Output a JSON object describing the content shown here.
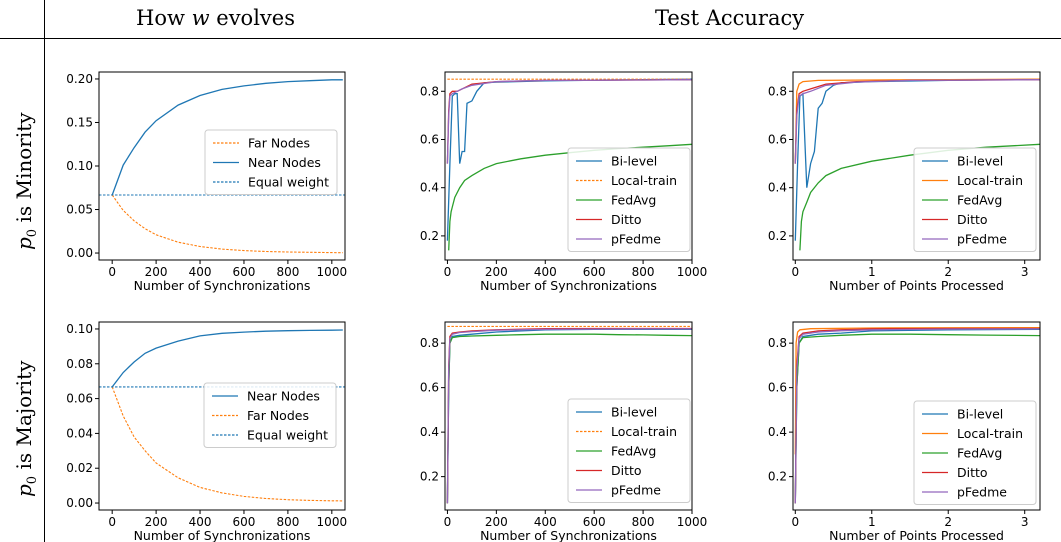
{
  "header": {
    "left_prefix": "How ",
    "left_var": "w",
    "left_suffix": " evolves",
    "right": "Test Accuracy"
  },
  "rows": [
    {
      "var": "p",
      "sub": "0",
      "text": " is Minority"
    },
    {
      "var": "p",
      "sub": "0",
      "text": " is Majority"
    }
  ],
  "colors": {
    "blue": "#1f77b4",
    "orange": "#ff7f0e",
    "green": "#2ca02c",
    "red": "#d62728",
    "purple": "#9467bd"
  },
  "chart_data": [
    {
      "type": "line",
      "panel": "minority-weights",
      "xlabel": "Number of Synchronizations",
      "xlim": [
        -60,
        1060
      ],
      "ylim": [
        -0.008,
        0.208
      ],
      "xticks": [
        0,
        200,
        400,
        600,
        800,
        1000
      ],
      "xtick_labels": [
        "0",
        "200",
        "400",
        "600",
        "800",
        "1000"
      ],
      "yticks": [
        0.0,
        0.05,
        0.1,
        0.15,
        0.2
      ],
      "ytick_labels": [
        "0.00",
        "0.05",
        "0.10",
        "0.15",
        "0.20"
      ],
      "legend_pos": "center-right",
      "legend": [
        "Far Nodes",
        "Near Nodes",
        "Equal weight"
      ],
      "series": [
        {
          "name": "Far Nodes",
          "color": "orange",
          "dash": true,
          "x": [
            0,
            50,
            100,
            150,
            200,
            300,
            400,
            500,
            600,
            700,
            800,
            900,
            1000,
            1050
          ],
          "y": [
            0.0667,
            0.049,
            0.037,
            0.028,
            0.021,
            0.0125,
            0.0075,
            0.0045,
            0.0028,
            0.0018,
            0.0012,
            0.0008,
            0.0005,
            0.0004
          ]
        },
        {
          "name": "Near Nodes",
          "color": "blue",
          "dash": false,
          "x": [
            0,
            50,
            100,
            150,
            200,
            300,
            400,
            500,
            600,
            700,
            800,
            900,
            1000,
            1050
          ],
          "y": [
            0.0667,
            0.101,
            0.121,
            0.139,
            0.152,
            0.17,
            0.181,
            0.188,
            0.192,
            0.195,
            0.197,
            0.198,
            0.199,
            0.199
          ]
        },
        {
          "name": "Equal weight",
          "color": "blue",
          "dash": true,
          "x": [
            -60,
            1060
          ],
          "y": [
            0.0667,
            0.0667
          ]
        }
      ]
    },
    {
      "type": "line",
      "panel": "minority-accuracy-sync",
      "xlabel": "Number of Synchronizations",
      "xlim": [
        -10,
        1000
      ],
      "ylim": [
        0.1,
        0.88
      ],
      "xticks": [
        0,
        200,
        400,
        600,
        800,
        1000
      ],
      "xtick_labels": [
        "0",
        "200",
        "400",
        "600",
        "800",
        "1000"
      ],
      "yticks": [
        0.2,
        0.4,
        0.6,
        0.8
      ],
      "ytick_labels": [
        "0.2",
        "0.4",
        "0.6",
        "0.8"
      ],
      "legend_pos": "lower-right",
      "legend": [
        "Bi-level",
        "Local-train",
        "FedAvg",
        "Ditto",
        "pFedme"
      ],
      "series": [
        {
          "name": "Bi-level",
          "color": "blue",
          "dash": false,
          "x": [
            0,
            10,
            20,
            30,
            40,
            50,
            60,
            70,
            80,
            100,
            120,
            150,
            200,
            400,
            600,
            800,
            1000
          ],
          "y": [
            0.18,
            0.5,
            0.78,
            0.79,
            0.79,
            0.5,
            0.55,
            0.55,
            0.75,
            0.76,
            0.8,
            0.835,
            0.838,
            0.843,
            0.846,
            0.848,
            0.85
          ]
        },
        {
          "name": "Local-train",
          "color": "orange",
          "dash": true,
          "x": [
            0,
            1000
          ],
          "y": [
            0.85,
            0.85
          ]
        },
        {
          "name": "FedAvg",
          "color": "green",
          "dash": false,
          "x": [
            5,
            10,
            15,
            20,
            30,
            50,
            70,
            100,
            150,
            200,
            300,
            400,
            500,
            600,
            700,
            800,
            900,
            1000
          ],
          "y": [
            0.14,
            0.26,
            0.3,
            0.32,
            0.36,
            0.4,
            0.43,
            0.45,
            0.48,
            0.5,
            0.52,
            0.535,
            0.545,
            0.555,
            0.562,
            0.568,
            0.574,
            0.58
          ]
        },
        {
          "name": "Ditto",
          "color": "red",
          "dash": false,
          "x": [
            0,
            5,
            10,
            20,
            40,
            60,
            100,
            200,
            400,
            600,
            800,
            1000
          ],
          "y": [
            0.5,
            0.72,
            0.79,
            0.8,
            0.8,
            0.81,
            0.83,
            0.84,
            0.845,
            0.846,
            0.847,
            0.848
          ]
        },
        {
          "name": "pFedme",
          "color": "purple",
          "dash": false,
          "x": [
            0,
            5,
            10,
            20,
            40,
            60,
            100,
            200,
            400,
            600,
            800,
            1000
          ],
          "y": [
            0.5,
            0.7,
            0.78,
            0.79,
            0.8,
            0.81,
            0.825,
            0.84,
            0.845,
            0.846,
            0.847,
            0.848
          ]
        }
      ]
    },
    {
      "type": "line",
      "panel": "minority-accuracy-points",
      "xlabel": "Number of Points Processed",
      "xlim": [
        -0.03,
        3.2
      ],
      "ylim": [
        0.1,
        0.88
      ],
      "xticks": [
        0,
        1,
        2,
        3
      ],
      "xtick_labels": [
        "0",
        "1",
        "2",
        "3"
      ],
      "yticks": [
        0.2,
        0.4,
        0.6,
        0.8
      ],
      "ytick_labels": [
        "0.2",
        "0.4",
        "0.6",
        "0.8"
      ],
      "legend_pos": "lower-right",
      "legend": [
        "Bi-level",
        "Local-train",
        "FedAvg",
        "Ditto",
        "pFedme"
      ],
      "series": [
        {
          "name": "Bi-level",
          "color": "blue",
          "dash": false,
          "x": [
            0,
            0.03,
            0.06,
            0.1,
            0.15,
            0.2,
            0.25,
            0.3,
            0.35,
            0.4,
            0.5,
            0.6,
            1.0,
            2.0,
            3.2
          ],
          "y": [
            0.18,
            0.5,
            0.78,
            0.79,
            0.4,
            0.5,
            0.55,
            0.73,
            0.75,
            0.8,
            0.825,
            0.835,
            0.84,
            0.845,
            0.85
          ]
        },
        {
          "name": "Local-train",
          "color": "orange",
          "dash": false,
          "x": [
            0.0,
            0.02,
            0.05,
            0.1,
            0.3,
            1.0,
            2.0,
            3.2
          ],
          "y": [
            0.5,
            0.8,
            0.83,
            0.84,
            0.845,
            0.847,
            0.848,
            0.85
          ]
        },
        {
          "name": "FedAvg",
          "color": "green",
          "dash": false,
          "x": [
            0.06,
            0.08,
            0.1,
            0.15,
            0.2,
            0.3,
            0.4,
            0.6,
            1.0,
            1.5,
            2.0,
            2.5,
            3.2
          ],
          "y": [
            0.14,
            0.26,
            0.3,
            0.34,
            0.38,
            0.42,
            0.45,
            0.48,
            0.51,
            0.535,
            0.555,
            0.568,
            0.58
          ]
        },
        {
          "name": "Ditto",
          "color": "red",
          "dash": false,
          "x": [
            0,
            0.02,
            0.05,
            0.1,
            0.2,
            0.4,
            0.8,
            1.5,
            3.2
          ],
          "y": [
            0.5,
            0.72,
            0.79,
            0.8,
            0.81,
            0.83,
            0.84,
            0.845,
            0.848
          ]
        },
        {
          "name": "pFedme",
          "color": "purple",
          "dash": false,
          "x": [
            0,
            0.02,
            0.05,
            0.1,
            0.2,
            0.4,
            0.8,
            1.5,
            3.2
          ],
          "y": [
            0.5,
            0.7,
            0.78,
            0.79,
            0.8,
            0.825,
            0.838,
            0.845,
            0.848
          ]
        }
      ]
    },
    {
      "type": "line",
      "panel": "majority-weights",
      "xlabel": "Number of Synchronizations",
      "xlim": [
        -60,
        1060
      ],
      "ylim": [
        -0.004,
        0.104
      ],
      "xticks": [
        0,
        200,
        400,
        600,
        800,
        1000
      ],
      "xtick_labels": [
        "0",
        "200",
        "400",
        "600",
        "800",
        "1000"
      ],
      "yticks": [
        0.0,
        0.02,
        0.04,
        0.06,
        0.08,
        0.1
      ],
      "ytick_labels": [
        "0.00",
        "0.02",
        "0.04",
        "0.06",
        "0.08",
        "0.10"
      ],
      "legend_pos": "center-right",
      "legend": [
        "Near Nodes",
        "Far Nodes",
        "Equal weight"
      ],
      "series": [
        {
          "name": "Near Nodes",
          "color": "blue",
          "dash": false,
          "x": [
            0,
            50,
            100,
            150,
            200,
            300,
            400,
            500,
            600,
            700,
            800,
            900,
            1000,
            1050
          ],
          "y": [
            0.0667,
            0.075,
            0.081,
            0.086,
            0.089,
            0.093,
            0.096,
            0.0975,
            0.0982,
            0.0987,
            0.099,
            0.0992,
            0.0993,
            0.0994
          ]
        },
        {
          "name": "Far Nodes",
          "color": "orange",
          "dash": true,
          "x": [
            0,
            50,
            100,
            150,
            200,
            300,
            400,
            500,
            600,
            700,
            800,
            900,
            1000,
            1050
          ],
          "y": [
            0.0667,
            0.05,
            0.038,
            0.03,
            0.023,
            0.0145,
            0.009,
            0.0058,
            0.0038,
            0.0026,
            0.0019,
            0.0015,
            0.0013,
            0.0012
          ]
        },
        {
          "name": "Equal weight",
          "color": "blue",
          "dash": true,
          "x": [
            -60,
            1060
          ],
          "y": [
            0.0667,
            0.0667
          ]
        }
      ]
    },
    {
      "type": "line",
      "panel": "majority-accuracy-sync",
      "xlabel": "Number of Synchronizations",
      "xlim": [
        -10,
        1000
      ],
      "ylim": [
        0.05,
        0.895
      ],
      "xticks": [
        0,
        200,
        400,
        600,
        800,
        1000
      ],
      "xtick_labels": [
        "0",
        "200",
        "400",
        "600",
        "800",
        "1000"
      ],
      "yticks": [
        0.2,
        0.4,
        0.6,
        0.8
      ],
      "ytick_labels": [
        "0.2",
        "0.4",
        "0.6",
        "0.8"
      ],
      "legend_pos": "lower-right",
      "legend": [
        "Bi-level",
        "Local-train",
        "FedAvg",
        "Ditto",
        "pFedme"
      ],
      "series": [
        {
          "name": "Bi-level",
          "color": "blue",
          "dash": false,
          "x": [
            0,
            5,
            10,
            20,
            50,
            100,
            200,
            400,
            600,
            800,
            1000
          ],
          "y": [
            0.08,
            0.6,
            0.8,
            0.83,
            0.835,
            0.84,
            0.85,
            0.86,
            0.862,
            0.862,
            0.862
          ]
        },
        {
          "name": "Local-train",
          "color": "orange",
          "dash": true,
          "x": [
            0,
            1000
          ],
          "y": [
            0.875,
            0.875
          ]
        },
        {
          "name": "FedAvg",
          "color": "green",
          "dash": false,
          "x": [
            0,
            5,
            10,
            20,
            50,
            100,
            200,
            300,
            400,
            500,
            600,
            700,
            800,
            900,
            1000
          ],
          "y": [
            0.08,
            0.6,
            0.8,
            0.825,
            0.83,
            0.832,
            0.835,
            0.838,
            0.84,
            0.84,
            0.84,
            0.838,
            0.837,
            0.835,
            0.834
          ]
        },
        {
          "name": "Ditto",
          "color": "red",
          "dash": false,
          "x": [
            0,
            5,
            10,
            20,
            50,
            100,
            200,
            400,
            600,
            800,
            1000
          ],
          "y": [
            0.08,
            0.7,
            0.83,
            0.845,
            0.85,
            0.855,
            0.86,
            0.865,
            0.866,
            0.866,
            0.866
          ]
        },
        {
          "name": "pFedme",
          "color": "purple",
          "dash": false,
          "x": [
            0,
            5,
            10,
            20,
            50,
            100,
            200,
            400,
            600,
            800,
            1000
          ],
          "y": [
            0.08,
            0.68,
            0.82,
            0.84,
            0.848,
            0.852,
            0.858,
            0.862,
            0.863,
            0.864,
            0.864
          ]
        }
      ]
    },
    {
      "type": "line",
      "panel": "majority-accuracy-points",
      "xlabel": "Number of Points Processed",
      "xlim": [
        -0.03,
        3.2
      ],
      "ylim": [
        0.05,
        0.895
      ],
      "xticks": [
        0,
        1,
        2,
        3
      ],
      "xtick_labels": [
        "0",
        "1",
        "2",
        "3"
      ],
      "yticks": [
        0.2,
        0.4,
        0.6,
        0.8
      ],
      "ytick_labels": [
        "0.2",
        "0.4",
        "0.6",
        "0.8"
      ],
      "legend_pos": "lower-right",
      "legend": [
        "Bi-level",
        "Local-train",
        "FedAvg",
        "Ditto",
        "pFedme"
      ],
      "series": [
        {
          "name": "Bi-level",
          "color": "blue",
          "dash": false,
          "x": [
            0,
            0.02,
            0.05,
            0.1,
            0.3,
            0.6,
            1.0,
            2.0,
            3.2
          ],
          "y": [
            0.08,
            0.6,
            0.8,
            0.83,
            0.84,
            0.845,
            0.855,
            0.86,
            0.862
          ]
        },
        {
          "name": "Local-train",
          "color": "orange",
          "dash": false,
          "x": [
            0,
            0.01,
            0.03,
            0.06,
            0.2,
            1.0,
            3.2
          ],
          "y": [
            0.3,
            0.8,
            0.85,
            0.86,
            0.865,
            0.868,
            0.87
          ]
        },
        {
          "name": "FedAvg",
          "color": "green",
          "dash": false,
          "x": [
            0,
            0.02,
            0.05,
            0.1,
            0.3,
            0.6,
            1.0,
            1.5,
            2.0,
            2.5,
            3.2
          ],
          "y": [
            0.08,
            0.6,
            0.8,
            0.825,
            0.83,
            0.835,
            0.84,
            0.84,
            0.838,
            0.836,
            0.834
          ]
        },
        {
          "name": "Ditto",
          "color": "red",
          "dash": false,
          "x": [
            0,
            0.02,
            0.05,
            0.1,
            0.3,
            0.6,
            1.0,
            2.0,
            3.2
          ],
          "y": [
            0.08,
            0.7,
            0.83,
            0.845,
            0.855,
            0.86,
            0.864,
            0.866,
            0.866
          ]
        },
        {
          "name": "pFedme",
          "color": "purple",
          "dash": false,
          "x": [
            0,
            0.02,
            0.05,
            0.1,
            0.3,
            0.6,
            1.0,
            2.0,
            3.2
          ],
          "y": [
            0.08,
            0.68,
            0.82,
            0.84,
            0.85,
            0.856,
            0.86,
            0.863,
            0.864
          ]
        }
      ]
    }
  ]
}
